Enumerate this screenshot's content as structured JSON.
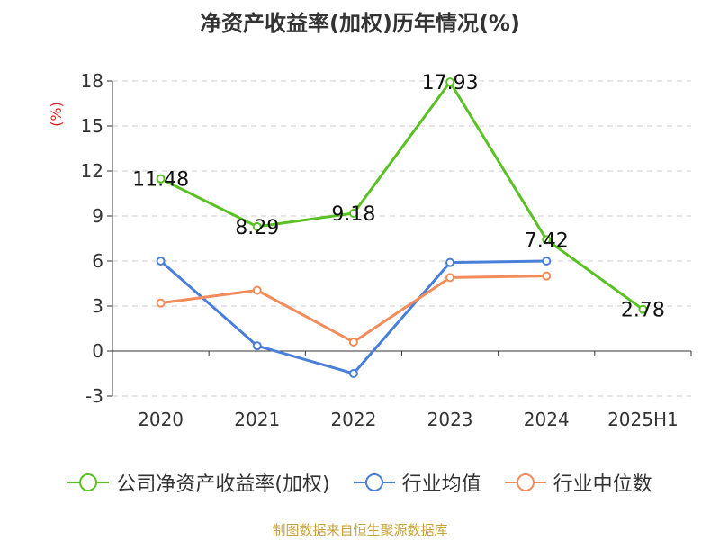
{
  "chart_data": {
    "type": "line",
    "title": "净资产收益率(加权)历年情况(%)",
    "ylabel": "(%)",
    "xlabel": "",
    "categories": [
      "2020",
      "2021",
      "2022",
      "2023",
      "2024",
      "2025H1"
    ],
    "ylim": [
      -3,
      18
    ],
    "yticks": [
      18,
      15,
      12,
      9,
      6,
      3,
      0,
      -3
    ],
    "grid": true,
    "legend_position": "bottom",
    "series": [
      {
        "name": "公司净资产收益率(加权)",
        "color": "#5ac125",
        "values": [
          11.48,
          8.29,
          9.18,
          17.93,
          7.42,
          2.78
        ],
        "labels": [
          "11.48",
          "8.29",
          "9.18",
          "17.93",
          "7.42",
          "2.78"
        ]
      },
      {
        "name": "行业均值",
        "color": "#4a7fd8",
        "values": [
          6.0,
          0.35,
          -1.5,
          5.9,
          6.0,
          null
        ]
      },
      {
        "name": "行业中位数",
        "color": "#f28c5a",
        "values": [
          3.2,
          4.05,
          0.6,
          4.9,
          5.0,
          null
        ]
      }
    ]
  },
  "source": "制图数据来自恒生聚源数据库"
}
